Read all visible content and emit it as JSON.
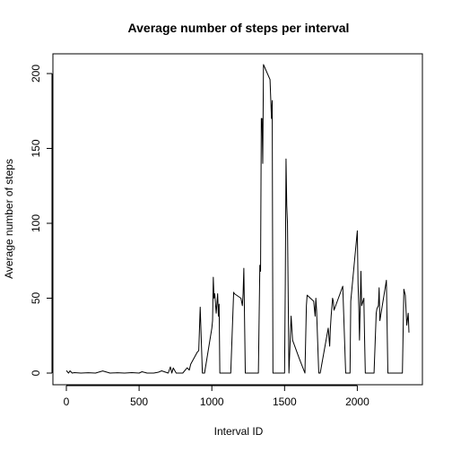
{
  "chart_data": {
    "type": "line",
    "title": "Average number of steps per interval",
    "xlabel": "Interval ID",
    "ylabel": "Average number of steps",
    "xlim": [
      0,
      2355
    ],
    "ylim": [
      0,
      206
    ],
    "xticks": [
      0,
      500,
      1000,
      1500,
      2000
    ],
    "yticks": [
      0,
      50,
      100,
      150,
      200
    ],
    "grid": false,
    "legend": "none",
    "series": [
      {
        "color": "#000000",
        "x": [
          0,
          15,
          25,
          40,
          55,
          100,
          150,
          200,
          250,
          300,
          350,
          400,
          450,
          500,
          520,
          555,
          600,
          630,
          655,
          700,
          715,
          725,
          735,
          755,
          800,
          830,
          845,
          855,
          900,
          910,
          920,
          935,
          950,
          1000,
          1005,
          1010,
          1015,
          1020,
          1030,
          1040,
          1045,
          1050,
          1055,
          1100,
          1130,
          1150,
          1155,
          1200,
          1210,
          1215,
          1220,
          1230,
          1300,
          1320,
          1330,
          1335,
          1340,
          1345,
          1350,
          1355,
          1400,
          1410,
          1415,
          1420,
          1430,
          1455,
          1500,
          1505,
          1510,
          1515,
          1520,
          1530,
          1545,
          1555,
          1600,
          1640,
          1650,
          1655,
          1700,
          1710,
          1715,
          1720,
          1735,
          1745,
          1800,
          1810,
          1815,
          1820,
          1830,
          1835,
          1840,
          1900,
          1920,
          1950,
          1955,
          2000,
          2005,
          2010,
          2015,
          2025,
          2030,
          2045,
          2050,
          2055,
          2100,
          2115,
          2130,
          2135,
          2145,
          2150,
          2155,
          2200,
          2210,
          2215,
          2220,
          2230,
          2300,
          2310,
          2320,
          2330,
          2340,
          2350,
          2355
        ],
        "y": [
          1.7,
          0,
          1.5,
          0,
          0.3,
          0,
          0.2,
          0,
          1.4,
          0,
          0.2,
          0,
          0.3,
          0,
          0.9,
          0,
          0,
          0.5,
          1.5,
          0,
          4.1,
          0,
          3.4,
          0,
          0,
          3.5,
          2,
          6,
          14,
          15,
          44,
          0,
          0,
          30,
          35,
          64,
          50,
          53,
          40,
          53,
          38,
          46,
          0,
          0,
          0,
          54,
          53,
          50,
          45,
          53,
          70,
          0,
          0,
          0,
          72,
          68,
          170,
          170,
          140,
          206,
          196,
          170,
          182,
          0,
          0,
          0,
          0,
          60,
          143,
          112,
          100,
          0,
          38,
          22,
          10,
          0,
          45,
          52,
          48,
          38,
          50,
          42,
          0,
          0,
          30,
          18,
          30,
          38,
          50,
          48,
          42,
          58,
          0,
          0,
          48,
          95,
          60,
          45,
          22,
          68,
          45,
          50,
          23,
          0,
          0,
          0,
          40,
          43,
          45,
          57,
          35,
          62,
          0,
          0,
          0,
          0,
          0,
          0,
          56,
          52,
          32,
          40,
          27
        ]
      }
    ]
  }
}
